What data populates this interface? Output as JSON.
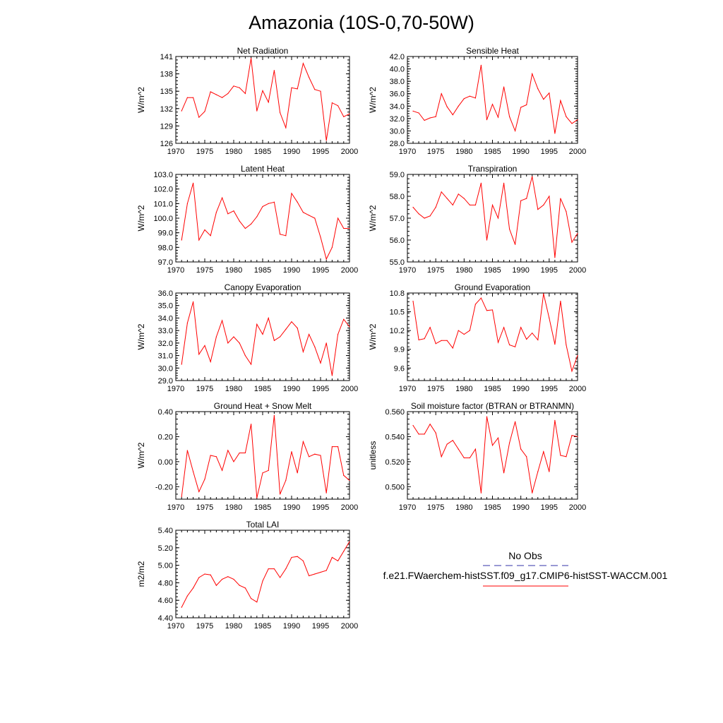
{
  "title": "Amazonia (10S-0,70-50W)",
  "legend": {
    "obs_label": "No Obs",
    "obs_color": "#3333aa",
    "model_label": "f.e21.FWaerchem-histSST.f09_g17.CMIP6-histSST-WACCM.001",
    "model_color": "#ff0000"
  },
  "colors": {
    "series": "#ff0000",
    "axis": "#000000",
    "background": "#ffffff"
  },
  "chart_data": [
    {
      "type": "line",
      "title": "Net Radiation",
      "ylabel": "W/m^2",
      "xlim": [
        1970,
        2000
      ],
      "ylim": [
        126,
        141
      ],
      "xticks": [
        1970,
        1975,
        1980,
        1985,
        1990,
        1995,
        2000
      ],
      "yticks": [
        "126",
        "129",
        "132",
        "135",
        "138",
        "141"
      ],
      "x": [
        1971,
        1972,
        1973,
        1974,
        1975,
        1976,
        1977,
        1978,
        1979,
        1980,
        1981,
        1982,
        1983,
        1984,
        1985,
        1986,
        1987,
        1988,
        1989,
        1990,
        1991,
        1992,
        1993,
        1994,
        1995,
        1996,
        1997,
        1998,
        1999,
        2000
      ],
      "series": [
        {
          "name": "f.e21.FWaerchem-histSST.f09_g17.CMIP6-histSST-WACCM.001",
          "values": [
            131.6,
            133.9,
            133.9,
            130.5,
            131.5,
            134.9,
            134.4,
            133.9,
            134.6,
            135.9,
            135.6,
            134.6,
            140.7,
            131.6,
            135.1,
            133.1,
            138.6,
            131.3,
            128.7,
            135.6,
            135.4,
            139.8,
            137.4,
            135.3,
            135.0,
            126.5,
            133.0,
            132.5,
            130.6,
            131.1
          ]
        }
      ]
    },
    {
      "type": "line",
      "title": "Sensible Heat",
      "ylabel": "W/m^2",
      "xlim": [
        1970,
        2000
      ],
      "ylim": [
        28,
        42
      ],
      "xticks": [
        1970,
        1975,
        1980,
        1985,
        1990,
        1995,
        2000
      ],
      "yticks": [
        "28.0",
        "30.0",
        "32.0",
        "34.0",
        "36.0",
        "38.0",
        "40.0",
        "42.0"
      ],
      "x": [
        1971,
        1972,
        1973,
        1974,
        1975,
        1976,
        1977,
        1978,
        1979,
        1980,
        1981,
        1982,
        1983,
        1984,
        1985,
        1986,
        1987,
        1988,
        1989,
        1990,
        1991,
        1992,
        1993,
        1994,
        1995,
        1996,
        1997,
        1998,
        1999,
        2000
      ],
      "series": [
        {
          "name": "f.e21.FWaerchem-histSST.f09_g17.CMIP6-histSST-WACCM.001",
          "values": [
            33.2,
            32.9,
            31.7,
            32.1,
            32.3,
            36.0,
            33.9,
            32.6,
            34.0,
            35.2,
            35.6,
            35.3,
            40.6,
            31.8,
            34.3,
            32.2,
            37.1,
            32.3,
            30.0,
            33.8,
            34.2,
            39.2,
            36.8,
            35.1,
            36.1,
            29.6,
            34.9,
            32.3,
            31.2,
            31.8
          ]
        }
      ]
    },
    {
      "type": "line",
      "title": "Latent Heat",
      "ylabel": "W/m^2",
      "xlim": [
        1970,
        2000
      ],
      "ylim": [
        97,
        103
      ],
      "xticks": [
        1970,
        1975,
        1980,
        1985,
        1990,
        1995,
        2000
      ],
      "yticks": [
        "97.0",
        "98.0",
        "99.0",
        "100.0",
        "101.0",
        "102.0",
        "103.0"
      ],
      "x": [
        1971,
        1972,
        1973,
        1974,
        1975,
        1976,
        1977,
        1978,
        1979,
        1980,
        1981,
        1982,
        1983,
        1984,
        1985,
        1986,
        1987,
        1988,
        1989,
        1990,
        1991,
        1992,
        1993,
        1994,
        1995,
        1996,
        1997,
        1998,
        1999,
        2000
      ],
      "series": [
        {
          "name": "f.e21.FWaerchem-histSST.f09_g17.CMIP6-histSST-WACCM.001",
          "values": [
            98.5,
            101.0,
            102.4,
            98.5,
            99.2,
            98.8,
            100.4,
            101.4,
            100.3,
            100.5,
            99.8,
            99.3,
            99.6,
            100.1,
            100.8,
            101.0,
            101.1,
            98.9,
            98.8,
            101.7,
            101.1,
            100.4,
            100.2,
            100.0,
            98.7,
            97.2,
            98.0,
            100.0,
            99.3,
            99.3
          ]
        }
      ]
    },
    {
      "type": "line",
      "title": "Transpiration",
      "ylabel": "W/m^2",
      "xlim": [
        1970,
        2000
      ],
      "ylim": [
        55,
        59
      ],
      "xticks": [
        1970,
        1975,
        1980,
        1985,
        1990,
        1995,
        2000
      ],
      "yticks": [
        "55.0",
        "56.0",
        "57.0",
        "58.0",
        "59.0"
      ],
      "x": [
        1971,
        1972,
        1973,
        1974,
        1975,
        1976,
        1977,
        1978,
        1979,
        1980,
        1981,
        1982,
        1983,
        1984,
        1985,
        1986,
        1987,
        1988,
        1989,
        1990,
        1991,
        1992,
        1993,
        1994,
        1995,
        1996,
        1997,
        1998,
        1999,
        2000
      ],
      "series": [
        {
          "name": "f.e21.FWaerchem-histSST.f09_g17.CMIP6-histSST-WACCM.001",
          "values": [
            57.5,
            57.2,
            57.0,
            57.1,
            57.5,
            58.2,
            57.9,
            57.6,
            58.1,
            57.9,
            57.6,
            57.6,
            58.6,
            56.0,
            57.6,
            57.0,
            58.6,
            56.5,
            55.8,
            57.8,
            57.9,
            58.9,
            57.4,
            57.6,
            58.0,
            55.2,
            57.9,
            57.3,
            55.9,
            56.3
          ]
        }
      ]
    },
    {
      "type": "line",
      "title": "Canopy Evaporation",
      "ylabel": "W/m^2",
      "xlim": [
        1970,
        2000
      ],
      "ylim": [
        29,
        36
      ],
      "xticks": [
        1970,
        1975,
        1980,
        1985,
        1990,
        1995,
        2000
      ],
      "yticks": [
        "29.0",
        "30.0",
        "31.0",
        "32.0",
        "33.0",
        "34.0",
        "35.0",
        "36.0"
      ],
      "x": [
        1971,
        1972,
        1973,
        1974,
        1975,
        1976,
        1977,
        1978,
        1979,
        1980,
        1981,
        1982,
        1983,
        1984,
        1985,
        1986,
        1987,
        1988,
        1989,
        1990,
        1991,
        1992,
        1993,
        1994,
        1995,
        1996,
        1997,
        1998,
        1999,
        2000
      ],
      "series": [
        {
          "name": "f.e21.FWaerchem-histSST.f09_g17.CMIP6-histSST-WACCM.001",
          "values": [
            30.3,
            33.6,
            35.3,
            31.1,
            31.8,
            30.5,
            32.5,
            33.8,
            32.0,
            32.5,
            32.0,
            31.0,
            30.3,
            33.5,
            32.7,
            34.0,
            32.2,
            32.5,
            33.1,
            33.7,
            33.2,
            31.3,
            32.7,
            31.7,
            30.4,
            32.0,
            29.4,
            32.7,
            33.9,
            33.3
          ]
        }
      ]
    },
    {
      "type": "line",
      "title": "Ground Evaporation",
      "ylabel": "W/m^2",
      "xlim": [
        1970,
        2000
      ],
      "ylim": [
        9.4,
        10.8
      ],
      "xticks": [
        1970,
        1975,
        1980,
        1985,
        1990,
        1995,
        2000
      ],
      "yticks": [
        "9.6",
        "9.9",
        "10.2",
        "10.5",
        "10.8"
      ],
      "x": [
        1971,
        1972,
        1973,
        1974,
        1975,
        1976,
        1977,
        1978,
        1979,
        1980,
        1981,
        1982,
        1983,
        1984,
        1985,
        1986,
        1987,
        1988,
        1989,
        1990,
        1991,
        1992,
        1993,
        1994,
        1995,
        1996,
        1997,
        1998,
        1999,
        2000
      ],
      "series": [
        {
          "name": "f.e21.FWaerchem-histSST.f09_g17.CMIP6-histSST-WACCM.001",
          "values": [
            10.67,
            10.05,
            10.07,
            10.25,
            9.99,
            10.04,
            10.04,
            9.92,
            10.2,
            10.14,
            10.2,
            10.62,
            10.72,
            10.52,
            10.53,
            10.01,
            10.25,
            9.97,
            9.94,
            10.25,
            10.06,
            10.16,
            10.05,
            10.79,
            10.4,
            9.98,
            10.67,
            9.97,
            9.55,
            9.8
          ]
        }
      ]
    },
    {
      "type": "line",
      "title": "Ground Heat + Snow Melt",
      "ylabel": "W/m^2",
      "xlim": [
        1970,
        2000
      ],
      "ylim": [
        -0.3,
        0.4
      ],
      "xticks": [
        1970,
        1975,
        1980,
        1985,
        1990,
        1995,
        2000
      ],
      "yticks": [
        "-0.20",
        "0.00",
        "0.20",
        "0.40"
      ],
      "x": [
        1971,
        1972,
        1973,
        1974,
        1975,
        1976,
        1977,
        1978,
        1979,
        1980,
        1981,
        1982,
        1983,
        1984,
        1985,
        1986,
        1987,
        1988,
        1989,
        1990,
        1991,
        1992,
        1993,
        1994,
        1995,
        1996,
        1997,
        1998,
        1999,
        2000
      ],
      "series": [
        {
          "name": "f.e21.FWaerchem-histSST.f09_g17.CMIP6-histSST-WACCM.001",
          "values": [
            -0.28,
            0.09,
            -0.08,
            -0.24,
            -0.14,
            0.05,
            0.04,
            -0.07,
            0.09,
            0.0,
            0.07,
            0.07,
            0.3,
            -0.29,
            -0.09,
            -0.07,
            0.37,
            -0.26,
            -0.15,
            0.08,
            -0.09,
            0.16,
            0.04,
            0.06,
            0.05,
            -0.25,
            0.12,
            0.12,
            -0.11,
            -0.15
          ]
        }
      ]
    },
    {
      "type": "line",
      "title": "Soil moisture factor (BTRAN or BTRANMN)",
      "ylabel": "unitless",
      "xlim": [
        1970,
        2000
      ],
      "ylim": [
        0.49,
        0.56
      ],
      "xticks": [
        1970,
        1975,
        1980,
        1985,
        1990,
        1995,
        2000
      ],
      "yticks": [
        "0.500",
        "0.520",
        "0.540",
        "0.560"
      ],
      "x": [
        1971,
        1972,
        1973,
        1974,
        1975,
        1976,
        1977,
        1978,
        1979,
        1980,
        1981,
        1982,
        1983,
        1984,
        1985,
        1986,
        1987,
        1988,
        1989,
        1990,
        1991,
        1992,
        1993,
        1994,
        1995,
        1996,
        1997,
        1998,
        1999,
        2000
      ],
      "series": [
        {
          "name": "f.e21.FWaerchem-histSST.f09_g17.CMIP6-histSST-WACCM.001",
          "values": [
            0.549,
            0.542,
            0.542,
            0.55,
            0.543,
            0.524,
            0.534,
            0.537,
            0.53,
            0.523,
            0.523,
            0.53,
            0.495,
            0.556,
            0.533,
            0.539,
            0.511,
            0.535,
            0.552,
            0.53,
            0.524,
            0.495,
            0.512,
            0.528,
            0.512,
            0.553,
            0.525,
            0.524,
            0.541,
            0.54
          ]
        }
      ]
    },
    {
      "type": "line",
      "title": "Total LAI",
      "ylabel": "m2/m2",
      "xlim": [
        1970,
        2000
      ],
      "ylim": [
        4.4,
        5.4
      ],
      "xticks": [
        1970,
        1975,
        1980,
        1985,
        1990,
        1995,
        2000
      ],
      "yticks": [
        "4.40",
        "4.60",
        "4.80",
        "5.00",
        "5.20",
        "5.40"
      ],
      "x": [
        1971,
        1972,
        1973,
        1974,
        1975,
        1976,
        1977,
        1978,
        1979,
        1980,
        1981,
        1982,
        1983,
        1984,
        1985,
        1986,
        1987,
        1988,
        1989,
        1990,
        1991,
        1992,
        1993,
        1994,
        1995,
        1996,
        1997,
        1998,
        1999,
        2000
      ],
      "series": [
        {
          "name": "f.e21.FWaerchem-histSST.f09_g17.CMIP6-histSST-WACCM.001",
          "values": [
            4.52,
            4.65,
            4.74,
            4.86,
            4.9,
            4.89,
            4.77,
            4.84,
            4.87,
            4.84,
            4.77,
            4.74,
            4.62,
            4.58,
            4.82,
            4.96,
            4.96,
            4.86,
            4.96,
            5.09,
            5.1,
            5.05,
            4.88,
            4.9,
            4.92,
            4.94,
            5.09,
            5.05,
            5.16,
            5.27
          ]
        }
      ]
    }
  ]
}
